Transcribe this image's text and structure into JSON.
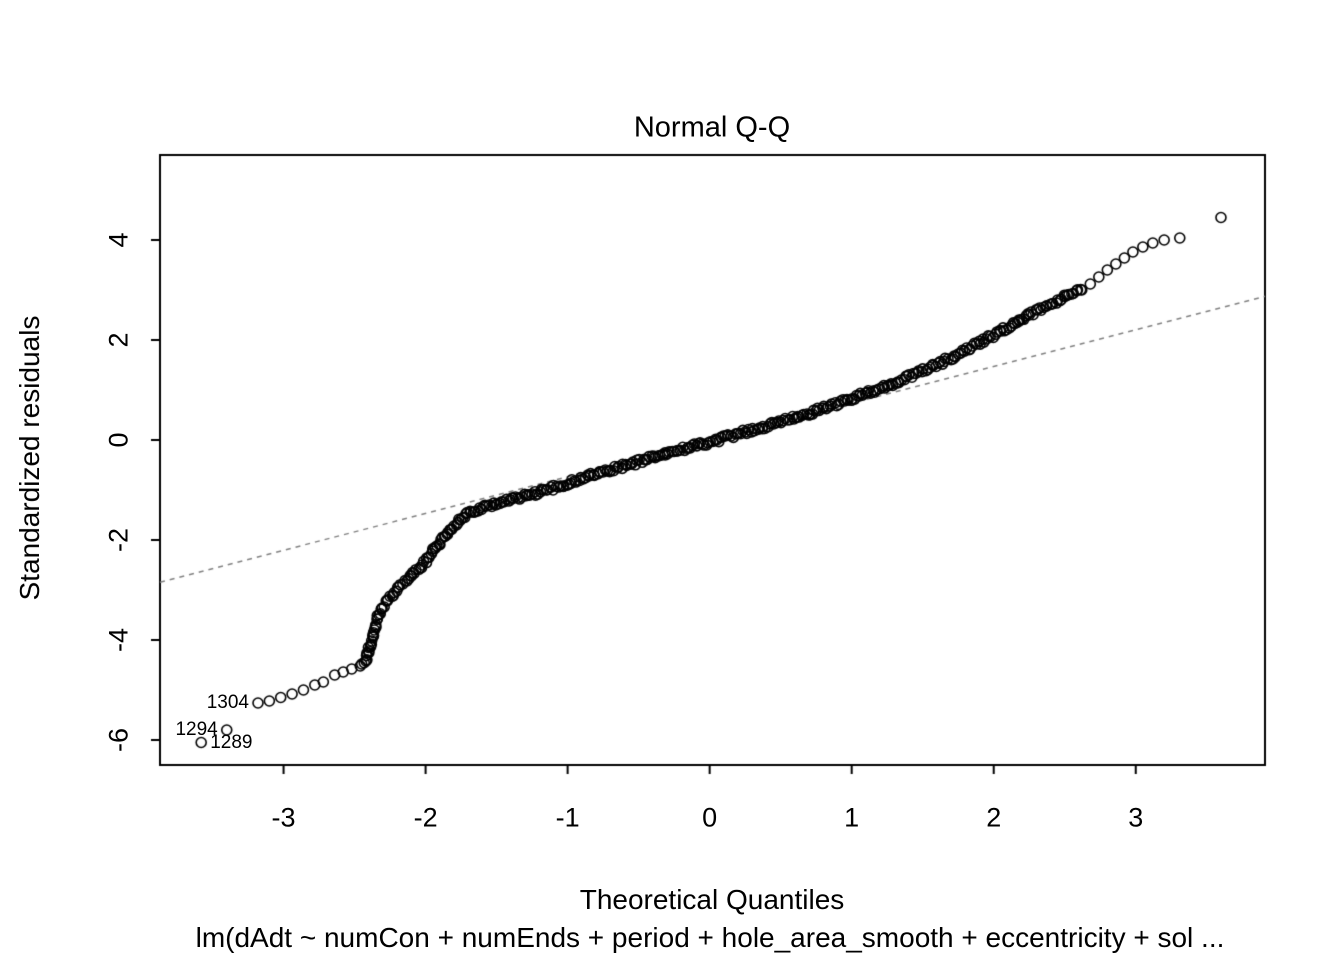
{
  "chart_data": {
    "type": "scatter",
    "title": "Normal Q-Q",
    "xlabel": "Theoretical Quantiles",
    "ylabel": "Standardized residuals",
    "caption": "lm(dAdt ~ numCon + numEnds + period + hole_area_smooth + eccentricity + sol ...",
    "xlim": [
      -3.87,
      3.91
    ],
    "ylim": [
      -6.5,
      5.7
    ],
    "xticks": [
      -3,
      -2,
      -1,
      0,
      1,
      2,
      3
    ],
    "yticks": [
      -6,
      -4,
      -2,
      0,
      2,
      4
    ],
    "grid": false,
    "marker": "open-circle",
    "point_color": "#000000",
    "reference_line": {
      "style": "dashed",
      "color": "#808080",
      "slope": 0.735,
      "intercept": 0.0
    },
    "dense_x_range": [
      -2.46,
      2.62
    ],
    "labeled_points": [
      {
        "label": "1304",
        "x": -3.18,
        "y": -5.26,
        "label_side": "left"
      },
      {
        "label": "1294",
        "x": -3.4,
        "y": -5.8,
        "label_side": "left"
      },
      {
        "label": "1289",
        "x": -3.58,
        "y": -6.05,
        "label_side": "right"
      }
    ],
    "points": [
      [
        -3.58,
        -6.05
      ],
      [
        -3.4,
        -5.8
      ],
      [
        -3.18,
        -5.26
      ],
      [
        -3.1,
        -5.22
      ],
      [
        -3.02,
        -5.15
      ],
      [
        -2.94,
        -5.08
      ],
      [
        -2.86,
        -5.0
      ],
      [
        -2.78,
        -4.9
      ],
      [
        -2.72,
        -4.84
      ],
      [
        -2.64,
        -4.7
      ],
      [
        -2.58,
        -4.64
      ],
      [
        -2.52,
        -4.58
      ],
      [
        -2.46,
        -4.52
      ],
      [
        -2.42,
        -4.42
      ],
      [
        -2.4,
        -4.22
      ],
      [
        -2.38,
        -4.02
      ],
      [
        -2.36,
        -3.8
      ],
      [
        -2.34,
        -3.58
      ],
      [
        -2.31,
        -3.38
      ],
      [
        -2.27,
        -3.22
      ],
      [
        -2.22,
        -3.05
      ],
      [
        -2.16,
        -2.88
      ],
      [
        -2.1,
        -2.72
      ],
      [
        -2.04,
        -2.55
      ],
      [
        -1.98,
        -2.35
      ],
      [
        -1.92,
        -2.12
      ],
      [
        -1.86,
        -1.92
      ],
      [
        -1.8,
        -1.72
      ],
      [
        -1.74,
        -1.56
      ],
      [
        -1.68,
        -1.44
      ],
      [
        -1.62,
        -1.36
      ],
      [
        -1.55,
        -1.3
      ],
      [
        -1.45,
        -1.24
      ],
      [
        -1.35,
        -1.16
      ],
      [
        -1.25,
        -1.08
      ],
      [
        -1.15,
        -1.0
      ],
      [
        -1.05,
        -0.92
      ],
      [
        -0.95,
        -0.82
      ],
      [
        -0.85,
        -0.72
      ],
      [
        -0.75,
        -0.64
      ],
      [
        -0.65,
        -0.56
      ],
      [
        -0.55,
        -0.48
      ],
      [
        -0.45,
        -0.4
      ],
      [
        -0.35,
        -0.31
      ],
      [
        -0.25,
        -0.23
      ],
      [
        -0.15,
        -0.15
      ],
      [
        -0.05,
        -0.08
      ],
      [
        0.05,
        0.0
      ],
      [
        0.15,
        0.08
      ],
      [
        0.25,
        0.16
      ],
      [
        0.35,
        0.24
      ],
      [
        0.45,
        0.32
      ],
      [
        0.55,
        0.4
      ],
      [
        0.65,
        0.49
      ],
      [
        0.75,
        0.58
      ],
      [
        0.85,
        0.68
      ],
      [
        0.95,
        0.78
      ],
      [
        1.05,
        0.88
      ],
      [
        1.15,
        0.98
      ],
      [
        1.25,
        1.08
      ],
      [
        1.35,
        1.2
      ],
      [
        1.45,
        1.33
      ],
      [
        1.55,
        1.45
      ],
      [
        1.65,
        1.57
      ],
      [
        1.75,
        1.72
      ],
      [
        1.85,
        1.88
      ],
      [
        1.95,
        2.02
      ],
      [
        2.05,
        2.18
      ],
      [
        2.15,
        2.33
      ],
      [
        2.25,
        2.5
      ],
      [
        2.35,
        2.65
      ],
      [
        2.45,
        2.8
      ],
      [
        2.55,
        2.92
      ],
      [
        2.62,
        3.0
      ],
      [
        2.68,
        3.12
      ],
      [
        2.74,
        3.26
      ],
      [
        2.8,
        3.4
      ],
      [
        2.86,
        3.52
      ],
      [
        2.92,
        3.64
      ],
      [
        2.98,
        3.76
      ],
      [
        3.05,
        3.86
      ],
      [
        3.12,
        3.94
      ],
      [
        3.2,
        4.0
      ],
      [
        3.31,
        4.04
      ],
      [
        3.6,
        4.45
      ]
    ]
  }
}
